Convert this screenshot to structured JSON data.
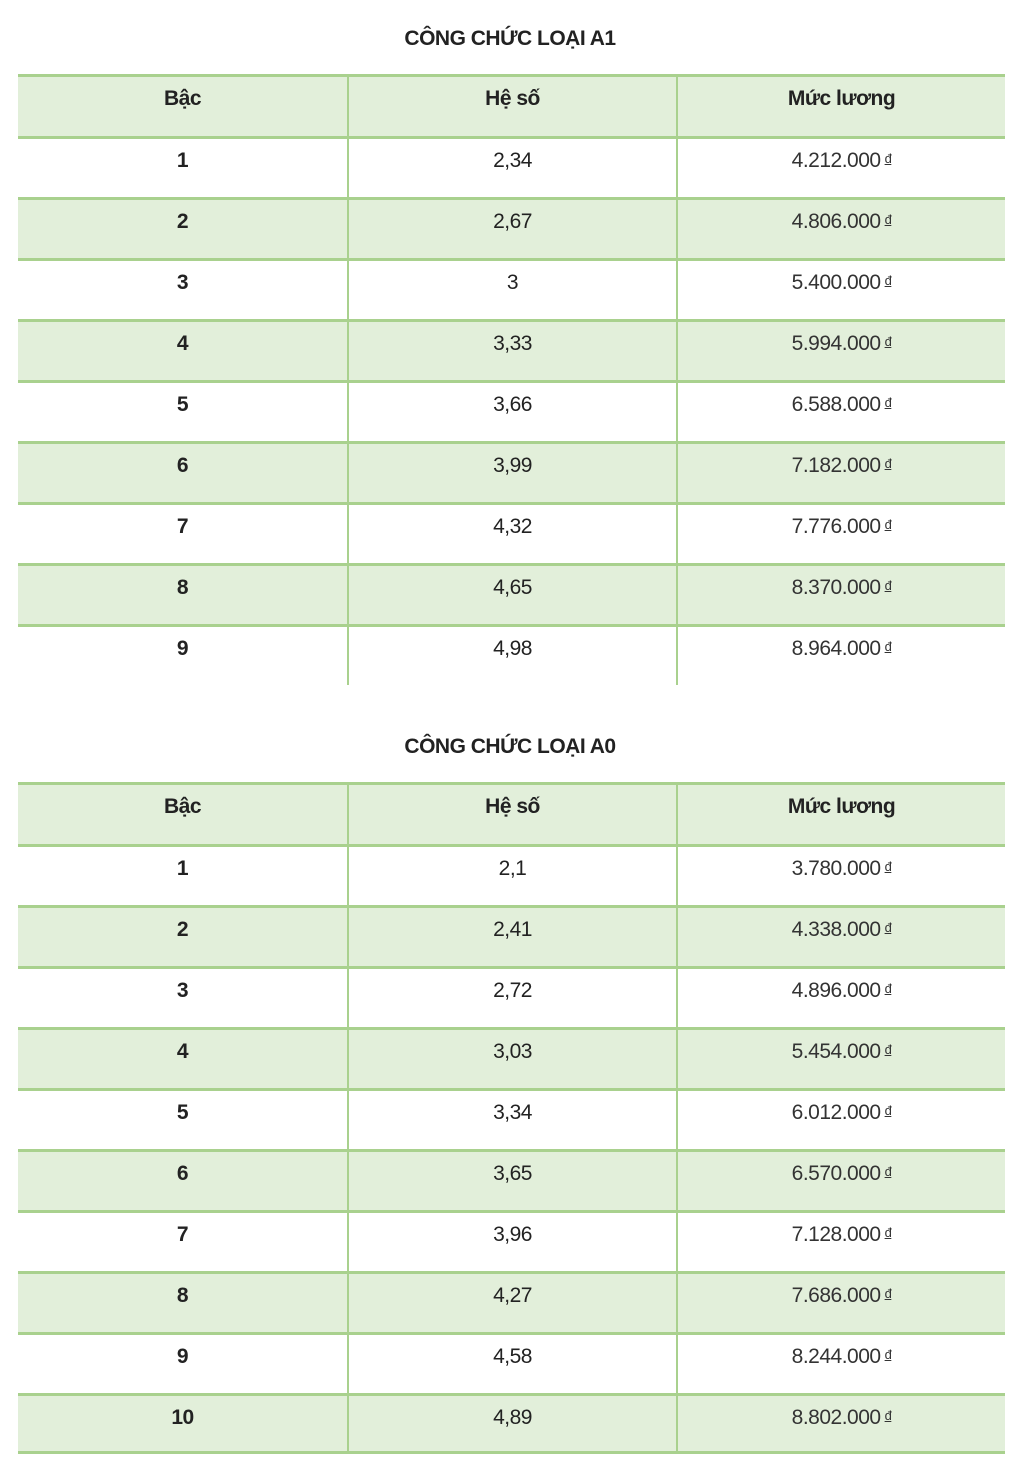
{
  "headers": [
    "Bậc",
    "Hệ số",
    "Mức lương"
  ],
  "currency": "đ",
  "tables": [
    {
      "title": "CÔNG CHỨC LOẠI A1",
      "rows": [
        [
          "1",
          "2,34",
          "4.212.000"
        ],
        [
          "2",
          "2,67",
          "4.806.000"
        ],
        [
          "3",
          "3",
          "5.400.000"
        ],
        [
          "4",
          "3,33",
          "5.994.000"
        ],
        [
          "5",
          "3,66",
          "6.588.000"
        ],
        [
          "6",
          "3,99",
          "7.182.000"
        ],
        [
          "7",
          "4,32",
          "7.776.000"
        ],
        [
          "8",
          "4,65",
          "8.370.000"
        ],
        [
          "9",
          "4,98",
          "8.964.000"
        ]
      ]
    },
    {
      "title": "CÔNG CHỨC LOẠI A0",
      "rows": [
        [
          "1",
          "2,1",
          "3.780.000"
        ],
        [
          "2",
          "2,41",
          "4.338.000"
        ],
        [
          "3",
          "2,72",
          "4.896.000"
        ],
        [
          "4",
          "3,03",
          "5.454.000"
        ],
        [
          "5",
          "3,34",
          "6.012.000"
        ],
        [
          "6",
          "3,65",
          "6.570.000"
        ],
        [
          "7",
          "3,96",
          "7.128.000"
        ],
        [
          "8",
          "4,27",
          "7.686.000"
        ],
        [
          "9",
          "4,58",
          "8.244.000"
        ],
        [
          "10",
          "4,89",
          "8.802.000"
        ]
      ]
    }
  ],
  "colors": {
    "header_bg": "#e2efda",
    "border": "#a9d18e"
  }
}
